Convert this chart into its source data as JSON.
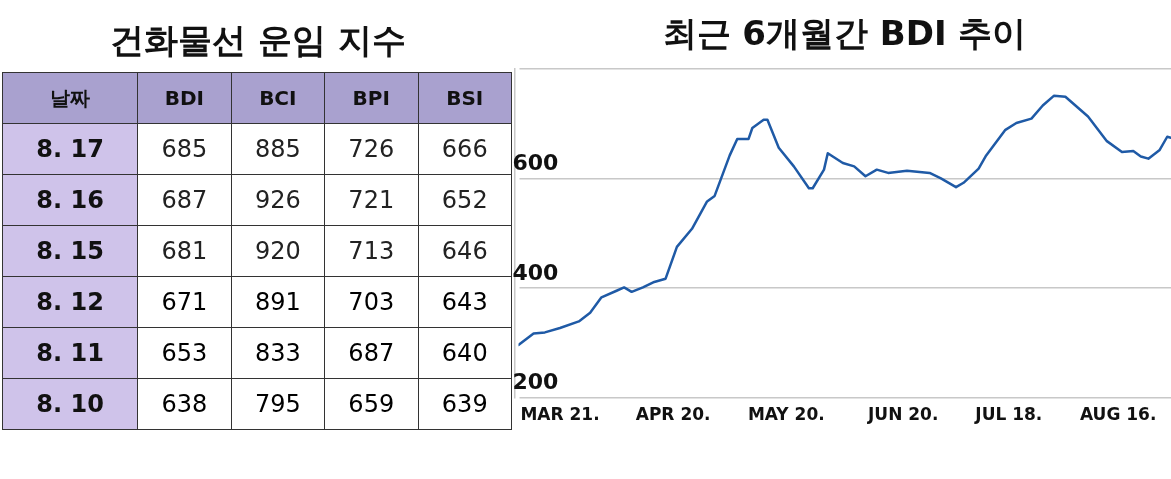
{
  "chart_data": [
    {
      "type": "other",
      "title": "건화물선 운임 지수",
      "xlabel": "날짜",
      "categories": [
        "8. 17",
        "8. 16",
        "8. 15",
        "8. 12",
        "8. 11",
        "8. 10"
      ],
      "data_labels": true,
      "series": [
        {
          "name": "BDI",
          "values": [
            685,
            687,
            681,
            671,
            653,
            638
          ]
        },
        {
          "name": "BCI",
          "values": [
            885,
            926,
            920,
            891,
            833,
            795
          ]
        },
        {
          "name": "BPI",
          "values": [
            726,
            721,
            713,
            703,
            687,
            659
          ]
        },
        {
          "name": "BSI",
          "values": [
            666,
            652,
            646,
            643,
            640,
            639
          ]
        }
      ]
    },
    {
      "type": "line",
      "title": "최근 6개월간 BDI 추이",
      "legend": false,
      "marker": "none",
      "grid": "y",
      "xlim": [
        "--03-10",
        "--08-30"
      ],
      "xticks": [
        {
          "value": "--03-21",
          "label": "MAR 21."
        },
        {
          "value": "--04-20",
          "label": "APR 20."
        },
        {
          "value": "--05-20",
          "label": "MAY 20."
        },
        {
          "value": "--06-20",
          "label": "JUN 20."
        },
        {
          "value": "--07-18",
          "label": "JUL 18."
        },
        {
          "value": "--08-16",
          "label": "AUG 16."
        }
      ],
      "ylim": [
        200,
        800
      ],
      "yticks": [
        200,
        400,
        600,
        {
          "value": 800,
          "label": null
        }
      ],
      "series": [
        {
          "color": "#1f5aa6",
          "x": [
            "--03-10",
            "--03-14",
            "--03-17",
            "--03-21",
            "--03-26",
            "--03-29",
            "--04-01",
            "--04-05",
            "--04-07",
            "--04-09",
            "--04-12",
            "--04-15",
            "--04-18",
            "--04-21",
            "--04-25",
            "--04-29",
            "--05-01",
            "--05-05",
            "--05-07",
            "--05-10",
            "--05-11",
            "--05-14",
            "--05-15",
            "--05-18",
            "--05-22",
            "--05-26",
            "--05-27",
            "--05-30",
            "--05-31",
            "--06-04",
            "--06-07",
            "--06-10",
            "--06-13",
            "--06-16",
            "--06-21",
            "--06-27",
            "--06-30",
            "--07-04",
            "--07-06",
            "--07-10",
            "--07-12",
            "--07-17",
            "--07-20",
            "--07-24",
            "--07-27",
            "--07-30",
            "--08-02",
            "--08-08",
            "--08-13",
            "--08-17",
            "--08-20",
            "--08-22",
            "--08-24",
            "--08-27",
            "--08-29",
            "--08-30"
          ],
          "values": [
            296,
            317,
            319,
            327,
            339,
            355,
            383,
            395,
            401,
            393,
            401,
            411,
            417,
            475,
            508,
            558,
            568,
            642,
            672,
            672,
            692,
            707,
            707,
            656,
            622,
            582,
            582,
            616,
            646,
            628,
            622,
            604,
            616,
            610,
            614,
            610,
            600,
            584,
            592,
            618,
            642,
            688,
            701,
            709,
            733,
            751,
            749,
            713,
            668,
            648,
            650,
            640,
            636,
            652,
            676,
            674
          ]
        }
      ]
    }
  ]
}
